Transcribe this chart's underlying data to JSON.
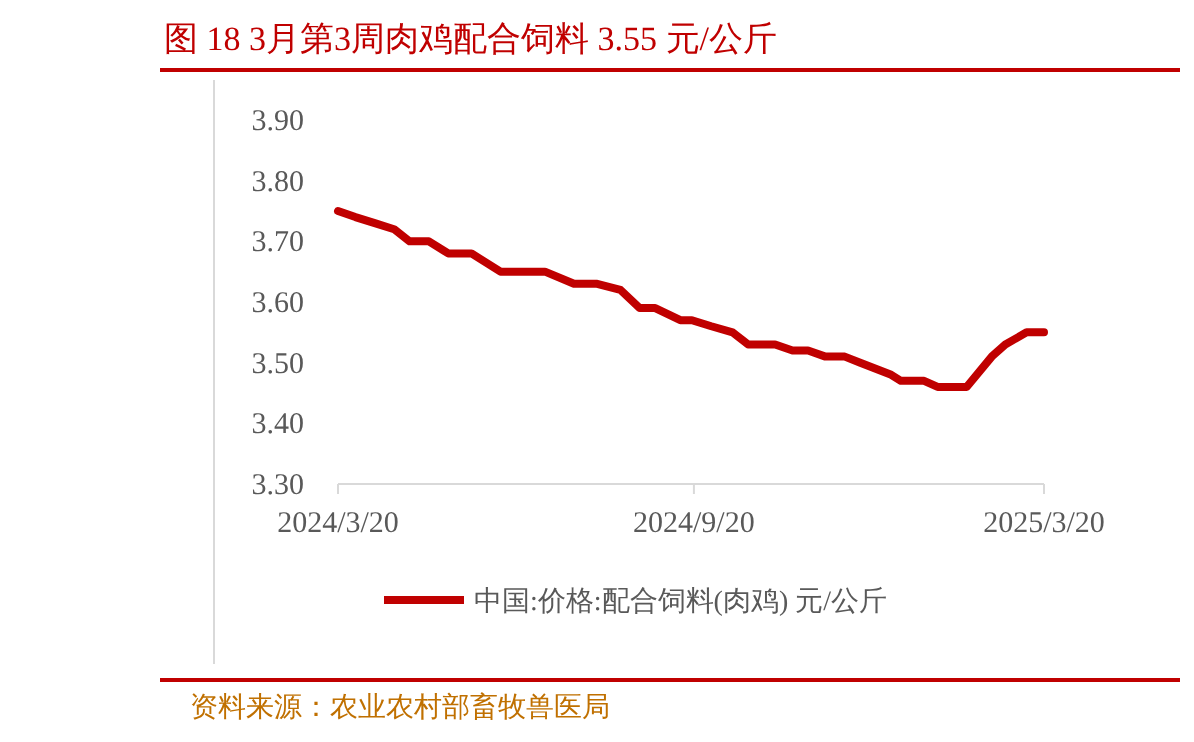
{
  "chart_data": {
    "type": "line",
    "title": "图 18 3月第3周肉鸡配合饲料 3.55 元/公斤",
    "x": [
      "2024-03-20",
      "2024-03-29",
      "2024-04-08",
      "2024-04-18",
      "2024-04-26",
      "2024-05-06",
      "2024-05-16",
      "2024-05-28",
      "2024-06-12",
      "2024-07-05",
      "2024-07-20",
      "2024-08-01",
      "2024-08-13",
      "2024-08-23",
      "2024-08-31",
      "2024-09-13",
      "2024-09-19",
      "2024-09-29",
      "2024-10-10",
      "2024-10-18",
      "2024-11-01",
      "2024-11-10",
      "2024-11-18",
      "2024-11-27",
      "2024-12-07",
      "2024-12-15",
      "2024-12-31",
      "2025-01-05",
      "2025-01-17",
      "2025-01-24",
      "2025-02-08",
      "2025-02-21",
      "2025-02-28",
      "2025-03-11",
      "2025-03-20"
    ],
    "series": [
      {
        "name": "中国:价格:配合饲料(肉鸡) 元/公斤",
        "color": "#c00000",
        "values": [
          3.75,
          3.74,
          3.73,
          3.72,
          3.7,
          3.7,
          3.68,
          3.68,
          3.65,
          3.65,
          3.63,
          3.63,
          3.62,
          3.59,
          3.59,
          3.57,
          3.57,
          3.56,
          3.55,
          3.53,
          3.53,
          3.52,
          3.52,
          3.51,
          3.51,
          3.5,
          3.48,
          3.47,
          3.47,
          3.46,
          3.46,
          3.51,
          3.53,
          3.55,
          3.55
        ]
      }
    ],
    "xlim": [
      "2024-03-20",
      "2025-03-20"
    ],
    "xticks": [
      {
        "value": "2024-03-20",
        "label": "2024/3/20"
      },
      {
        "value": "2024-09-20",
        "label": "2024/9/20"
      },
      {
        "value": "2025-03-20",
        "label": "2025/3/20"
      }
    ],
    "ylim": [
      3.3,
      3.9
    ],
    "yticks": [
      {
        "value": 3.3,
        "label": "3.30"
      },
      {
        "value": 3.4,
        "label": "3.40"
      },
      {
        "value": 3.5,
        "label": "3.50"
      },
      {
        "value": 3.6,
        "label": "3.60"
      },
      {
        "value": 3.7,
        "label": "3.70"
      },
      {
        "value": 3.8,
        "label": "3.80"
      },
      {
        "value": 3.9,
        "label": "3.90"
      }
    ],
    "legend": "bottom",
    "marker": "none",
    "line_style": "solid",
    "annotations": [
      "资料来源：农业农村部畜牧兽医局"
    ]
  }
}
